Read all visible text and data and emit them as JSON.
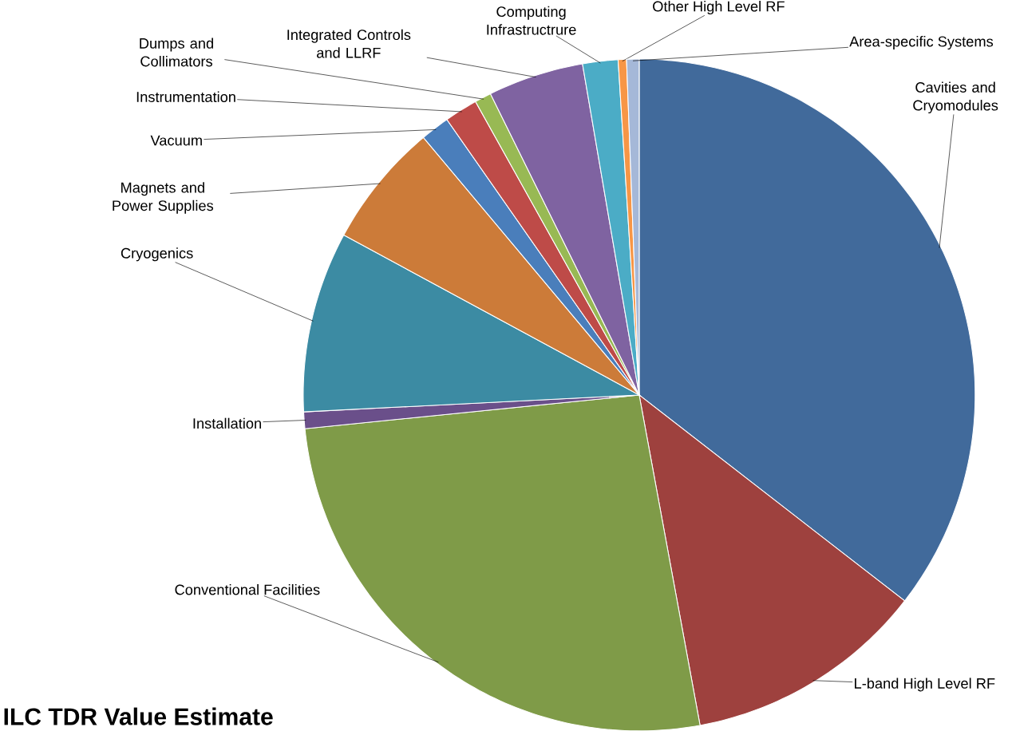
{
  "chart_data": {
    "type": "pie",
    "title": "ILC TDR Value Estimate",
    "categories": [
      "Cavities and Cryomodules",
      "L-band  High Level RF",
      "Conventional Facilities",
      "Installation",
      "Cryogenics",
      "Magnets and Power Supplies",
      "Vacuum",
      "Instrumentation",
      "Dumps and Collimators",
      "Integrated Controls and LLRF",
      "Computing Infrastructrure",
      "Other High Level RF",
      "Area-specific Systems"
    ],
    "values": [
      35.5,
      11.6,
      26.3,
      0.8,
      8.7,
      6.0,
      1.4,
      1.6,
      0.8,
      4.6,
      1.7,
      0.4,
      0.6
    ],
    "colors": [
      "#416a9b",
      "#9e413e",
      "#7f9b48",
      "#6a4f8a",
      "#3c8ba3",
      "#cc7b39",
      "#4a7ebb",
      "#be4b48",
      "#98b954",
      "#7f63a1",
      "#4bacc6",
      "#f79646",
      "#a5b8d8"
    ]
  }
}
